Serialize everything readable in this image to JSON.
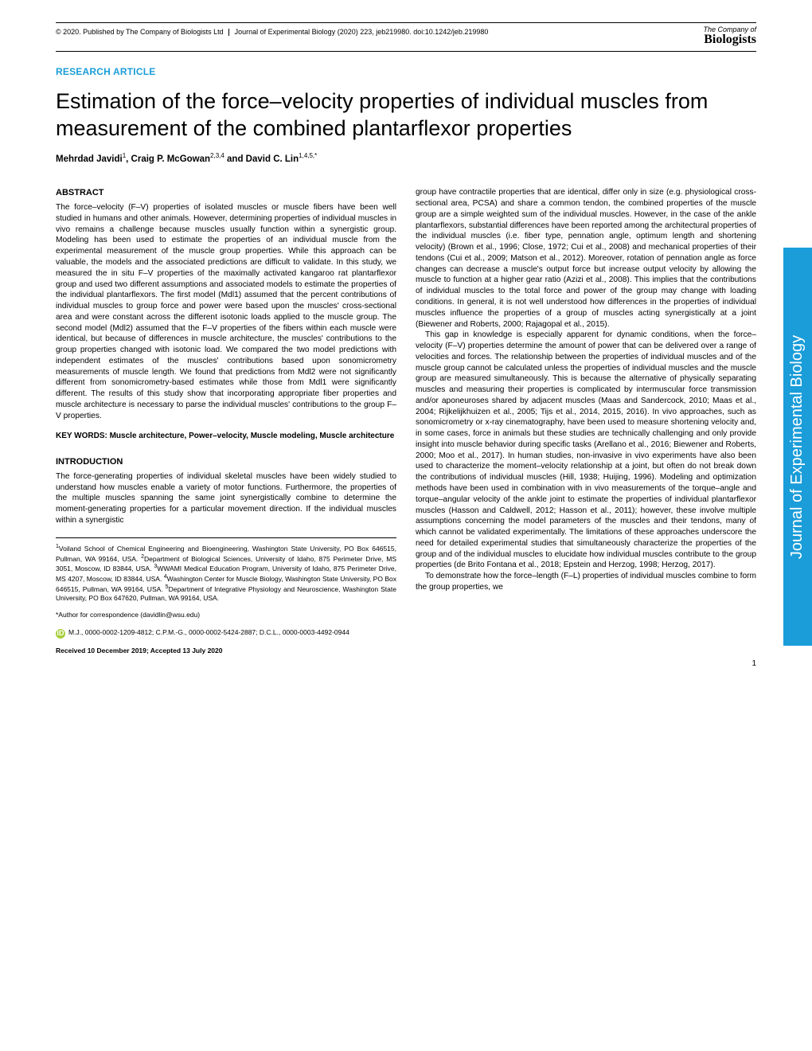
{
  "header": {
    "copyright": "© 2020. Published by The Company of Biologists Ltd",
    "journal_ref": "Journal of Experimental Biology (2020) 223, jeb219980. doi:10.1242/jeb.219980",
    "logo_top": "The Company of",
    "logo_bottom": "Biologists"
  },
  "article_type": "RESEARCH ARTICLE",
  "title": "Estimation of the force–velocity properties of individual muscles from measurement of the combined plantarflexor properties",
  "authors_html": "Mehrdad Javidi<sup>1</sup>, Craig P. McGowan<sup>2,3,4</sup> and David C. Lin<sup>1,4,5,*</sup>",
  "abstract": {
    "heading": "ABSTRACT",
    "text": "The force–velocity (F–V) properties of isolated muscles or muscle fibers have been well studied in humans and other animals. However, determining properties of individual muscles in vivo remains a challenge because muscles usually function within a synergistic group. Modeling has been used to estimate the properties of an individual muscle from the experimental measurement of the muscle group properties. While this approach can be valuable, the models and the associated predictions are difficult to validate. In this study, we measured the in situ F–V properties of the maximally activated kangaroo rat plantarflexor group and used two different assumptions and associated models to estimate the properties of the individual plantarflexors. The first model (Mdl1) assumed that the percent contributions of individual muscles to group force and power were based upon the muscles' cross-sectional area and were constant across the different isotonic loads applied to the muscle group. The second model (Mdl2) assumed that the F–V properties of the fibers within each muscle were identical, but because of differences in muscle architecture, the muscles' contributions to the group properties changed with isotonic load. We compared the two model predictions with independent estimates of the muscles' contributions based upon sonomicrometry measurements of muscle length. We found that predictions from Mdl2 were not significantly different from sonomicrometry-based estimates while those from Mdl1 were significantly different. The results of this study show that incorporating appropriate fiber properties and muscle architecture is necessary to parse the individual muscles' contributions to the group F–V properties."
  },
  "keywords": "KEY WORDS: Muscle architecture, Power–velocity, Muscle modeling, Muscle architecture",
  "introduction": {
    "heading": "INTRODUCTION",
    "p1": "The force-generating properties of individual skeletal muscles have been widely studied to understand how muscles enable a variety of motor functions. Furthermore, the properties of the multiple muscles spanning the same joint synergistically combine to determine the moment-generating properties for a particular movement direction. If the individual muscles within a synergistic"
  },
  "affiliations": "<sup>1</sup>Voiland School of Chemical Engineering and Bioengineering, Washington State University, PO Box 646515, Pullman, WA 99164, USA. <sup>2</sup>Department of Biological Sciences, University of Idaho, 875 Perimeter Drive, MS 3051, Moscow, ID 83844, USA. <sup>3</sup>WWAMI Medical Education Program, University of Idaho, 875 Perimeter Drive, MS 4207, Moscow, ID 83844, USA. <sup>4</sup>Washington Center for Muscle Biology, Washington State University, PO Box 646515, Pullman, WA 99164, USA. <sup>5</sup>Department of Integrative Physiology and Neuroscience, Washington State University, PO Box 647620, Pullman, WA 99164, USA.",
  "correspondence": "*Author for correspondence (davidlin@wsu.edu)",
  "orcid": "M.J., 0000-0002-1209-4812; C.P.M.-G., 0000-0002-5424-2887; D.C.L., 0000-0003-4492-0944",
  "dates": "Received 10 December 2019; Accepted 13 July 2020",
  "right_col": {
    "p1": "group have contractile properties that are identical, differ only in size (e.g. physiological cross-sectional area, PCSA) and share a common tendon, the combined properties of the muscle group are a simple weighted sum of the individual muscles. However, in the case of the ankle plantarflexors, substantial differences have been reported among the architectural properties of the individual muscles (i.e. fiber type, pennation angle, optimum length and shortening velocity) (Brown et al., 1996; Close, 1972; Cui et al., 2008) and mechanical properties of their tendons (Cui et al., 2009; Matson et al., 2012). Moreover, rotation of pennation angle as force changes can decrease a muscle's output force but increase output velocity by allowing the muscle to function at a higher gear ratio (Azizi et al., 2008). This implies that the contributions of individual muscles to the total force and power of the group may change with loading conditions. In general, it is not well understood how differences in the properties of individual muscles influence the properties of a group of muscles acting synergistically at a joint (Biewener and Roberts, 2000; Rajagopal et al., 2015).",
    "p2": "This gap in knowledge is especially apparent for dynamic conditions, when the force–velocity (F–V) properties determine the amount of power that can be delivered over a range of velocities and forces. The relationship between the properties of individual muscles and of the muscle group cannot be calculated unless the properties of individual muscles and the muscle group are measured simultaneously. This is because the alternative of physically separating muscles and measuring their properties is complicated by intermuscular force transmission and/or aponeuroses shared by adjacent muscles (Maas and Sandercock, 2010; Maas et al., 2004; Rijkelijkhuizen et al., 2005; Tijs et al., 2014, 2015, 2016). In vivo approaches, such as sonomicrometry or x-ray cinematography, have been used to measure shortening velocity and, in some cases, force in animals but these studies are technically challenging and only provide insight into muscle behavior during specific tasks (Arellano et al., 2016; Biewener and Roberts, 2000; Moo et al., 2017). In human studies, non-invasive in vivo experiments have also been used to characterize the moment–velocity relationship at a joint, but often do not break down the contributions of individual muscles (Hill, 1938; Huijing, 1996). Modeling and optimization methods have been used in combination with in vivo measurements of the torque–angle and torque–angular velocity of the ankle joint to estimate the properties of individual plantarflexor muscles (Hasson and Caldwell, 2012; Hasson et al., 2011); however, these involve multiple assumptions concerning the model parameters of the muscles and their tendons, many of which cannot be validated experimentally. The limitations of these approaches underscore the need for detailed experimental studies that simultaneously characterize the properties of the group and of the individual muscles to elucidate how individual muscles contribute to the group properties (de Brito Fontana et al., 2018; Epstein and Herzog, 1998; Herzog, 2017).",
    "p3": "To demonstrate how the force–length (F–L) properties of individual muscles combine to form the group properties, we"
  },
  "side_tab": "Journal of Experimental Biology",
  "page_number": "1",
  "colors": {
    "accent": "#1a9dd9",
    "orcid": "#a6ce39"
  }
}
